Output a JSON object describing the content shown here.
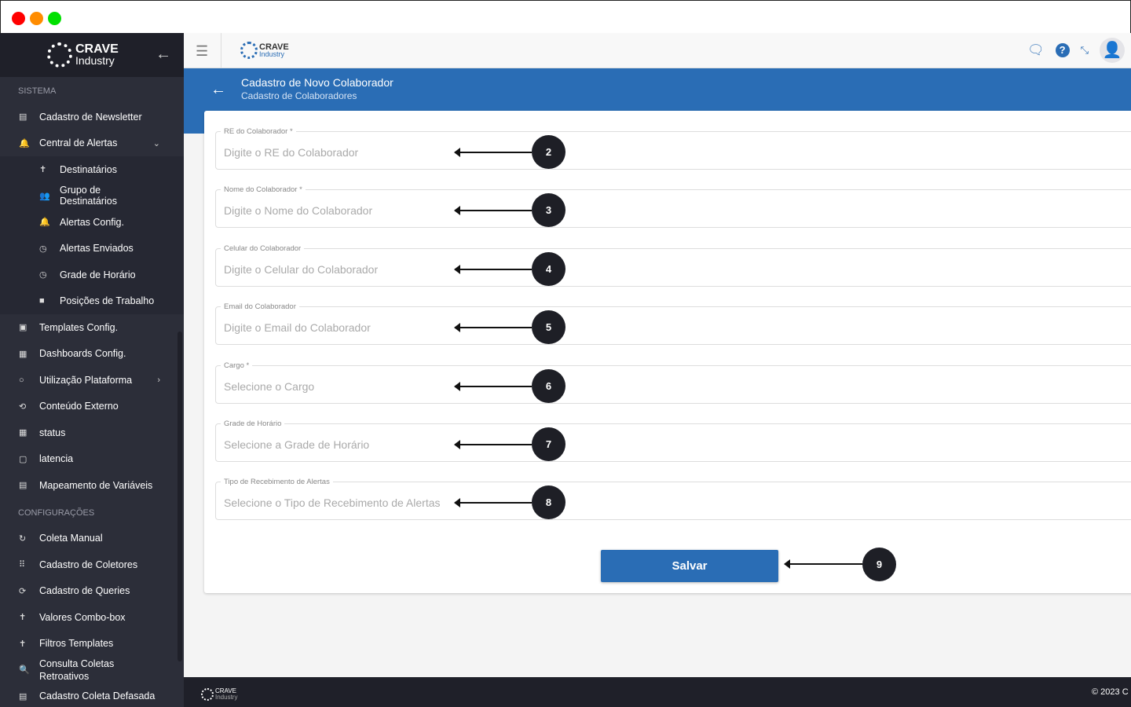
{
  "window": {
    "controls": [
      "close",
      "minimize",
      "maximize"
    ],
    "colors": {
      "close": "#ff0000",
      "minimize": "#ff8c00",
      "maximize": "#00e000"
    }
  },
  "brand": {
    "name": "CRAVE",
    "sub": "Industry"
  },
  "sidebar": {
    "sections": [
      {
        "title": "SISTEMA",
        "items": [
          {
            "label": "Cadastro de Newsletter",
            "icon": "newspaper-icon"
          },
          {
            "label": "Central de Alertas",
            "icon": "bell-icon",
            "expanded": true,
            "children": [
              {
                "label": "Destinatários",
                "icon": "person-icon"
              },
              {
                "label": "Grupo de Destinatários",
                "icon": "group-icon"
              },
              {
                "label": "Alertas Config.",
                "icon": "bell-gear-icon"
              },
              {
                "label": "Alertas Enviados",
                "icon": "history-icon"
              },
              {
                "label": "Grade de Horário",
                "icon": "clock-icon"
              },
              {
                "label": "Posições de Trabalho",
                "icon": "briefcase-icon"
              }
            ]
          },
          {
            "label": "Templates Config.",
            "icon": "template-icon"
          },
          {
            "label": "Dashboards Config.",
            "icon": "dashboard-icon"
          },
          {
            "label": "Utilização Plataforma",
            "icon": "circle-icon",
            "has_children": true
          },
          {
            "label": "Conteúdo Externo",
            "icon": "external-icon"
          },
          {
            "label": "status",
            "icon": "grid-icon"
          },
          {
            "label": "latencia",
            "icon": "timer-icon"
          },
          {
            "label": "Mapeamento de Variáveis",
            "icon": "list-icon"
          }
        ]
      },
      {
        "title": "CONFIGURAÇÕES",
        "items": [
          {
            "label": "Coleta Manual",
            "icon": "refresh-icon"
          },
          {
            "label": "Cadastro de Coletores",
            "icon": "apps-icon"
          },
          {
            "label": "Cadastro de Queries",
            "icon": "sync-icon"
          },
          {
            "label": "Valores Combo-box",
            "icon": "person-icon"
          },
          {
            "label": "Filtros Templates",
            "icon": "person-icon"
          },
          {
            "label": "Consulta Coletas Retroativos",
            "icon": "search-icon"
          },
          {
            "label": "Cadastro Coleta Defasada",
            "icon": "calendar-icon"
          }
        ]
      }
    ]
  },
  "header": {
    "title": "Cadastro de Novo Colaborador",
    "subtitle": "Cadastro de Colaboradores",
    "color": "#2a6db5"
  },
  "form": {
    "fields": [
      {
        "label": "RE do Colaborador *",
        "placeholder": "Digite o RE do Colaborador",
        "annotation": "2"
      },
      {
        "label": "Nome do Colaborador *",
        "placeholder": "Digite o Nome do Colaborador",
        "annotation": "3"
      },
      {
        "label": "Celular do Colaborador",
        "placeholder": "Digite o Celular do Colaborador",
        "annotation": "4"
      },
      {
        "label": "Email do Colaborador",
        "placeholder": "Digite o Email do Colaborador",
        "annotation": "5"
      },
      {
        "label": "Cargo *",
        "placeholder": "Selecione o Cargo",
        "annotation": "6"
      },
      {
        "label": "Grade de Horário",
        "placeholder": "Selecione a Grade de Horário",
        "annotation": "7"
      },
      {
        "label": "Tipo de Recebimento de Alertas",
        "placeholder": "Selecione o Tipo de Recebimento de Alertas",
        "annotation": "8"
      }
    ],
    "save_label": "Salvar",
    "save_annotation": "9"
  },
  "footer": {
    "copyright": "© 2023 C"
  }
}
